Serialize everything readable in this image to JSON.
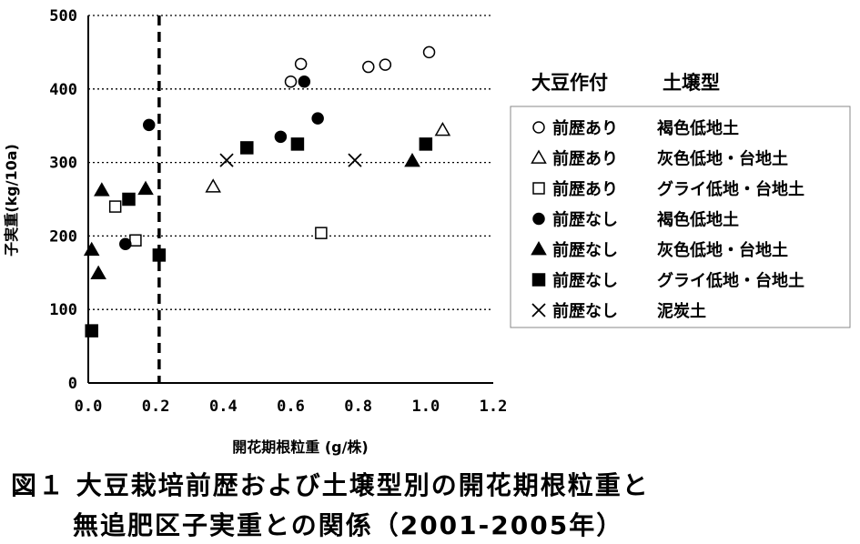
{
  "chart_data": {
    "type": "scatter",
    "xlabel": "開花期根粒重 (g/株)",
    "ylabel": "子実重(kg/10a)",
    "xlim": [
      0,
      1.2
    ],
    "ylim": [
      0,
      500
    ],
    "x_ticks": [
      "0.0",
      "0.2",
      "0.4",
      "0.6",
      "0.8",
      "1.0",
      "1.2"
    ],
    "y_ticks": [
      "0",
      "100",
      "200",
      "300",
      "400",
      "500"
    ],
    "grid": "horizontal dotted",
    "reference_line_x": 0.21,
    "legend_header": [
      "大豆作付",
      "土壌型"
    ],
    "legend_placement": "right",
    "series": [
      {
        "name": "前歴あり",
        "soil": "褐色低地土",
        "marker": "circle-open",
        "points": [
          [
            0.6,
            410
          ],
          [
            0.63,
            434
          ],
          [
            0.83,
            430
          ],
          [
            0.88,
            433
          ],
          [
            1.01,
            450
          ]
        ]
      },
      {
        "name": "前歴あり",
        "soil": "灰色低地・台地土",
        "marker": "triangle-open",
        "points": [
          [
            0.37,
            267
          ],
          [
            1.05,
            344
          ]
        ]
      },
      {
        "name": "前歴あり",
        "soil": "グライ低地・台地土",
        "marker": "square-open",
        "points": [
          [
            0.08,
            240
          ],
          [
            0.14,
            194
          ],
          [
            0.69,
            204
          ]
        ]
      },
      {
        "name": "前歴なし",
        "soil": "褐色低地土",
        "marker": "circle-filled",
        "points": [
          [
            0.18,
            351
          ],
          [
            0.11,
            189
          ],
          [
            0.57,
            335
          ],
          [
            0.64,
            410
          ],
          [
            0.68,
            360
          ]
        ]
      },
      {
        "name": "前歴なし",
        "soil": "灰色低地・台地土",
        "marker": "triangle-filled",
        "points": [
          [
            0.01,
            181
          ],
          [
            0.03,
            149
          ],
          [
            0.04,
            262
          ],
          [
            0.17,
            264
          ],
          [
            0.96,
            302
          ]
        ]
      },
      {
        "name": "前歴なし",
        "soil": "グライ低地・台地土",
        "marker": "square-filled",
        "points": [
          [
            0.01,
            71
          ],
          [
            0.12,
            250
          ],
          [
            0.21,
            174
          ],
          [
            0.47,
            320
          ],
          [
            0.62,
            325
          ],
          [
            1.0,
            325
          ]
        ]
      },
      {
        "name": "前歴なし",
        "soil": "泥炭土",
        "marker": "cross",
        "points": [
          [
            0.41,
            303
          ],
          [
            0.79,
            303
          ]
        ]
      }
    ]
  },
  "caption": {
    "line1": "図１ 大豆栽培前歴および土壌型別の開花期根粒重と",
    "line2": "無追肥区子実重との関係（2001-2005年）"
  }
}
